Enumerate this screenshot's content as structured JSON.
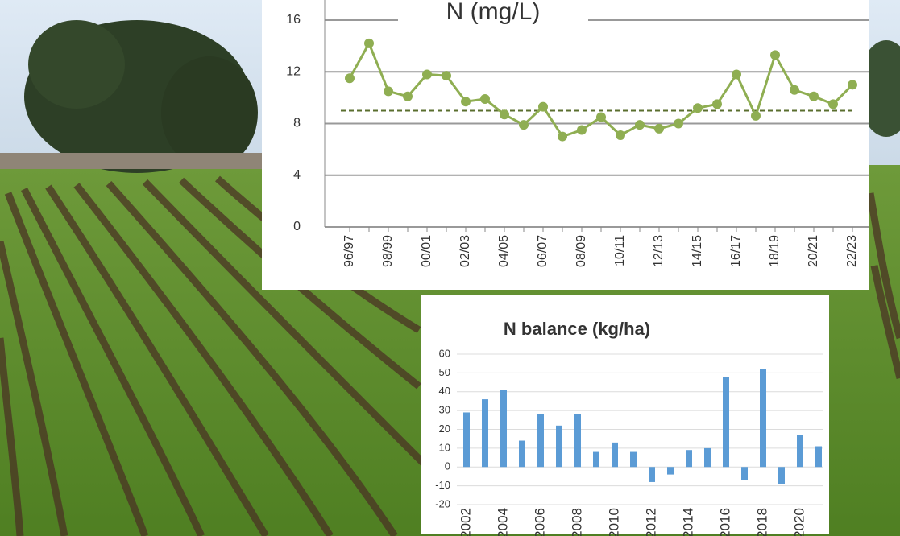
{
  "chart_data": [
    {
      "type": "line",
      "title": "N (mg/L)",
      "categories": [
        "96/97",
        null,
        "98/99",
        null,
        "00/01",
        null,
        "02/03",
        null,
        "04/05",
        null,
        "06/07",
        null,
        "08/09",
        null,
        "10/11",
        null,
        "12/13",
        null,
        "14/15",
        null,
        "16/17",
        null,
        "18/19",
        null,
        "20/21",
        null,
        "22/23"
      ],
      "values": [
        11.5,
        14.2,
        10.5,
        10.1,
        11.8,
        11.7,
        9.7,
        9.9,
        8.7,
        7.9,
        9.3,
        7.0,
        7.5,
        8.5,
        7.1,
        7.9,
        7.6,
        8.0,
        9.2,
        9.5,
        11.8,
        8.6,
        13.3,
        10.6,
        10.1,
        9.5,
        11.0
      ],
      "reference_line": 9,
      "color": "#8fae52",
      "reference_color": "#5a6e2e",
      "ylim": [
        0,
        16
      ],
      "yticks": [
        0,
        4,
        8,
        12,
        16
      ],
      "grid": true
    },
    {
      "type": "bar",
      "title": "N balance (kg/ha)",
      "categories": [
        "2002",
        null,
        "2004",
        null,
        "2006",
        null,
        "2008",
        null,
        "2010",
        null,
        "2012",
        null,
        "2014",
        null,
        "2016",
        null,
        "2018",
        null,
        "2020",
        null
      ],
      "values": [
        29,
        36,
        41,
        14,
        28,
        22,
        28,
        8,
        13,
        8,
        -8,
        -4,
        9,
        10,
        48,
        -7,
        52,
        -9,
        17,
        11
      ],
      "color": "#5b9bd5",
      "ylim": [
        -20,
        60
      ],
      "yticks": [
        -20,
        -10,
        0,
        10,
        20,
        30,
        40,
        50,
        60
      ],
      "grid": true
    }
  ]
}
